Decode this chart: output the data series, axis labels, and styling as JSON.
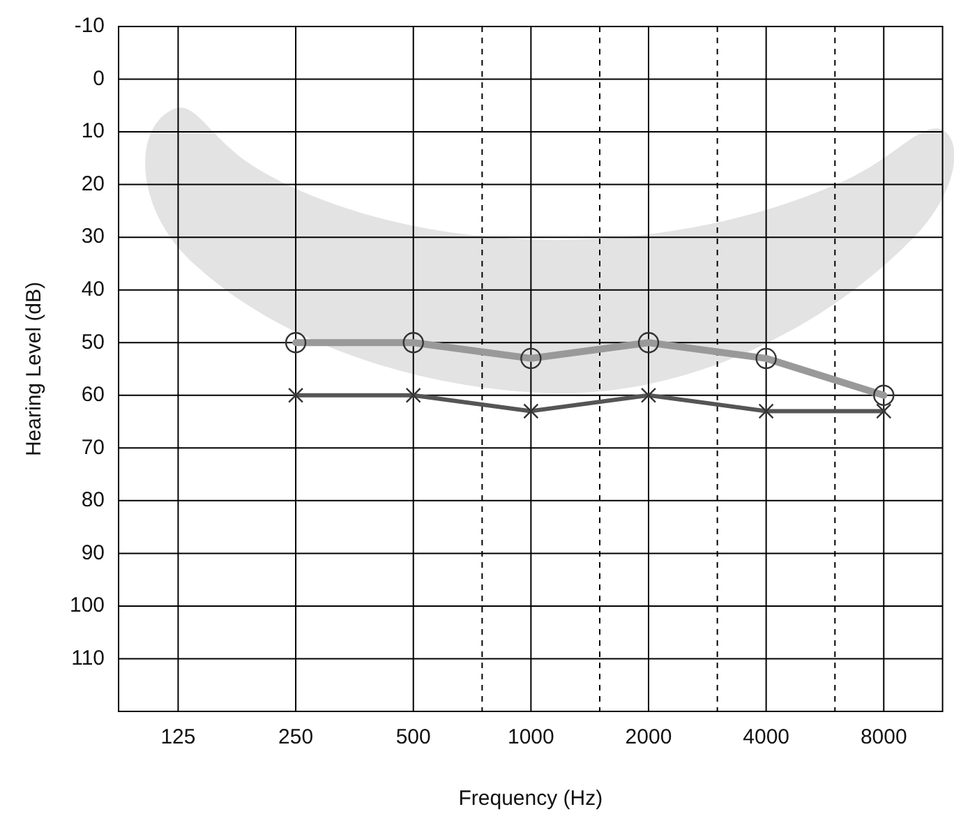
{
  "chart_data": {
    "type": "line",
    "xlabel": "Frequency (Hz)",
    "ylabel": "Hearing Level (dB)",
    "log": "x",
    "xlim": [
      88,
      11314
    ],
    "xticks": [
      125,
      250,
      500,
      {
        "value": 750,
        "label": null
      },
      1000,
      {
        "value": 1500,
        "label": null
      },
      2000,
      {
        "value": 3000,
        "label": null
      },
      4000,
      {
        "value": 6000,
        "label": null
      },
      8000
    ],
    "ylim": [
      120,
      -10
    ],
    "yticks": [
      -10,
      0,
      10,
      20,
      30,
      40,
      50,
      60,
      70,
      80,
      90,
      100,
      110,
      {
        "value": 120,
        "label": null
      }
    ],
    "grid": true,
    "legend": false,
    "x": [
      250,
      500,
      1000,
      2000,
      4000,
      8000
    ],
    "series": [
      {
        "color": "#999999",
        "marker": "circle",
        "values": [
          50,
          50,
          53,
          50,
          53,
          60
        ]
      },
      {
        "color": "#555555",
        "marker": "cross",
        "values": [
          60,
          60,
          63,
          60,
          63,
          63
        ]
      }
    ]
  }
}
